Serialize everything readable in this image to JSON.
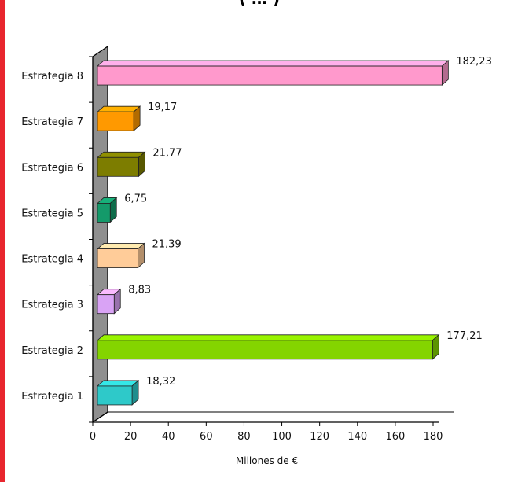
{
  "page": {
    "title_fragment": "( … )"
  },
  "chart_data": {
    "type": "bar",
    "orientation": "horizontal",
    "style": "3d",
    "categories": [
      "Estrategia 1",
      "Estrategia 2",
      "Estrategia 3",
      "Estrategia 4",
      "Estrategia 5",
      "Estrategia 6",
      "Estrategia 7",
      "Estrategia 8"
    ],
    "values": [
      18.32,
      177.21,
      8.83,
      21.39,
      6.75,
      21.77,
      19.17,
      182.23
    ],
    "value_labels": [
      "18,32",
      "177,21",
      "8,83",
      "21,39",
      "6,75",
      "21,77",
      "19,17",
      "182,23"
    ],
    "colors": [
      "#2ec9c9",
      "#84d400",
      "#d9a3f5",
      "#ffcc99",
      "#149a6a",
      "#7d7d00",
      "#ff9900",
      "#ff99cc"
    ],
    "xlabel": "Millones de €",
    "xlim": [
      0,
      180
    ],
    "xticks": [
      0,
      20,
      40,
      60,
      80,
      100,
      120,
      140,
      160,
      180
    ],
    "grid": false,
    "legend": "none",
    "wall_color": "#8f8f8f"
  }
}
